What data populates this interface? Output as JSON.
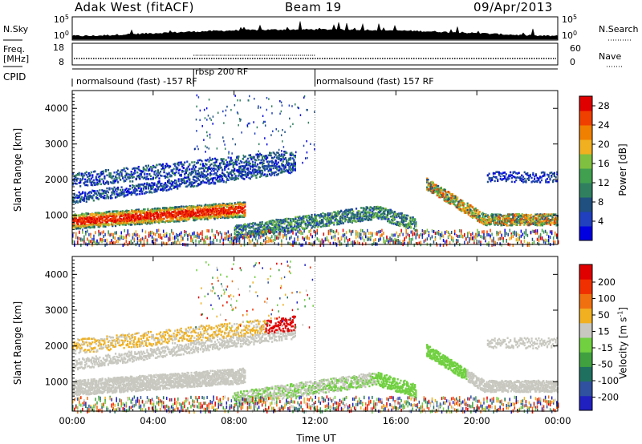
{
  "header": {
    "title": "Adak West (fitACF)",
    "beam": "Beam 19",
    "date": "09/Apr/2013"
  },
  "panels": {
    "nsky_label": "N.Sky",
    "nsearch_label": "N.Search",
    "noise_ticks": [
      "10^5",
      "10^0"
    ],
    "noise_right_ticks": [
      "10^5",
      "10^0"
    ],
    "freq_label_line1": "Freq.",
    "freq_label_line2": "[MHz]",
    "freq_ticks": [
      "18",
      "8"
    ],
    "nave_label": "Nave",
    "nave_ticks": [
      "60",
      "0"
    ],
    "cpid_label": "CPID",
    "cpid_modes": [
      "normalsound (fast) -157 RF",
      "rbsp 200 RF",
      "normalsound (fast) 157 RF"
    ]
  },
  "colors": {
    "power_scale": [
      "#0000e0",
      "#2040c0",
      "#205080",
      "#308060",
      "#40a050",
      "#80c040",
      "#f0b020",
      "#f08000",
      "#f04000",
      "#e00000"
    ],
    "velocity_scale": [
      "#2020c0",
      "#3050a0",
      "#207060",
      "#40a040",
      "#70d040",
      "#c8c8c0",
      "#f0b020",
      "#f07010",
      "#f03000",
      "#e00000"
    ]
  },
  "chart_data": [
    {
      "type": "heatmap",
      "name": "power",
      "ylabel": "Slant Range [km]",
      "xlabel": "Time UT",
      "x_ticks": [
        "00:00",
        "04:00",
        "08:00",
        "12:00",
        "16:00",
        "20:00",
        "00:00"
      ],
      "x_range_hours": [
        0,
        24
      ],
      "y_ticks": [
        "1000",
        "2000",
        "3000",
        "4000"
      ],
      "ylim": [
        180,
        4500
      ],
      "colorbar_label": "Power [dB]",
      "colorbar_ticks": [
        "4",
        "8",
        "12",
        "16",
        "20",
        "24",
        "28"
      ],
      "colorbar_range": [
        0,
        30
      ]
    },
    {
      "type": "heatmap",
      "name": "velocity",
      "ylabel": "Slant Range [km]",
      "xlabel": "Time UT",
      "x_ticks": [
        "00:00",
        "04:00",
        "08:00",
        "12:00",
        "16:00",
        "20:00",
        "00:00"
      ],
      "x_range_hours": [
        0,
        24
      ],
      "y_ticks": [
        "1000",
        "2000",
        "3000",
        "4000"
      ],
      "ylim": [
        180,
        4500
      ],
      "colorbar_label": "Velocity [m s^-1]",
      "colorbar_ticks": [
        "200",
        "100",
        "50",
        "15",
        "-15",
        "-50",
        "-100",
        "-200"
      ],
      "colorbar_range": [
        -250,
        250
      ]
    }
  ]
}
